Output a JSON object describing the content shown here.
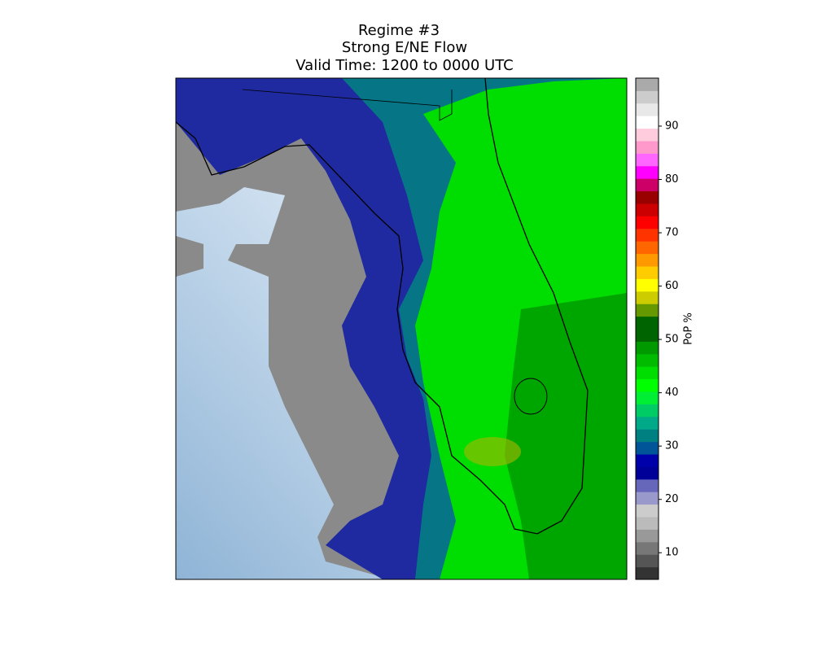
{
  "title": [
    "Regime #3",
    "Strong E/NE Flow",
    "Valid Time: 1200 to 0000 UTC"
  ],
  "colorbar": {
    "label": "PoP %",
    "lim": [
      5,
      99
    ],
    "ticks": [
      10,
      20,
      30,
      40,
      50,
      60,
      70,
      80,
      90
    ],
    "colors": [
      "#333333",
      "#555555",
      "#777777",
      "#999999",
      "#bbbbbb",
      "#cccccc",
      "#9999cc",
      "#6666bb",
      "#000099",
      "#0000aa",
      "#005599",
      "#008080",
      "#00aa88",
      "#00cc66",
      "#00ee33",
      "#00ff00",
      "#00dd00",
      "#00bb00",
      "#009900",
      "#006400",
      "#006400",
      "#669900",
      "#cccc00",
      "#ffff00",
      "#ffcc00",
      "#ff9900",
      "#ff6600",
      "#ff3300",
      "#ff0000",
      "#cc0000",
      "#990000",
      "#cc0066",
      "#ff00ff",
      "#ff66ff",
      "#ff99cc",
      "#ffccdd",
      "#ffffff",
      "#e8e8e8",
      "#cccccc",
      "#aaaaaa"
    ]
  }
}
